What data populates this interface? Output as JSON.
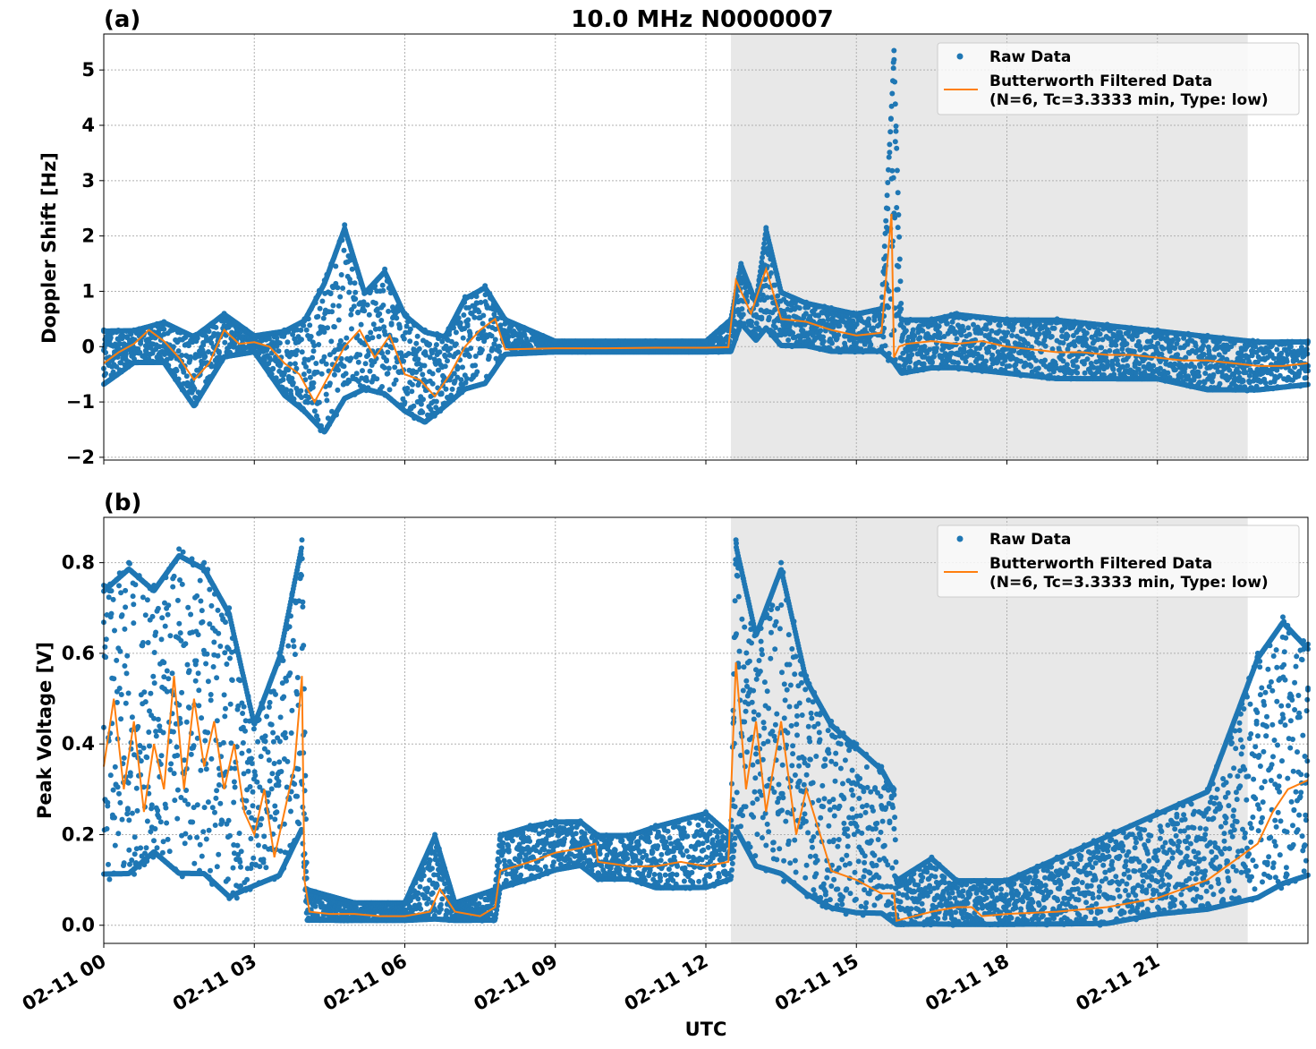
{
  "figure": {
    "suptitle": "10.0 MHz N0000007",
    "xlabel": "UTC",
    "x_tick_labels": [
      "02-11 00",
      "02-11 03",
      "02-11 06",
      "02-11 09",
      "02-11 12",
      "02-11 15",
      "02-11 18",
      "02-11 21"
    ]
  },
  "colors": {
    "raw": "#1f77b4",
    "filtered": "#ff7f0e",
    "shade": "#e8e8e8",
    "grid": "#b0b0b0"
  },
  "chart_data": [
    {
      "type": "scatter",
      "panel_label": "(a)",
      "title": "10.0 MHz N0000007",
      "xlabel": "UTC",
      "ylabel": "Doppler Shift [Hz]",
      "x_unit": "hours since 02-11 00 UTC",
      "xlim": [
        0,
        24
      ],
      "ylim": [
        -2.05,
        5.65
      ],
      "yticks": [
        5,
        4,
        3,
        2,
        1,
        0,
        -1,
        -2
      ],
      "ytick_labels": [
        "5",
        "4",
        "3",
        "2",
        "1",
        "0",
        "−1",
        "−2"
      ],
      "grid": true,
      "legend_position": "top-right",
      "legend": [
        "Raw Data",
        "Butterworth Filtered Data",
        "(N=6, Tc=3.3333 min, Type: low)"
      ],
      "shaded_x_range": [
        12.5,
        22.8
      ],
      "series": [
        {
          "name": "Butterworth Filtered Data",
          "kind": "line",
          "x": [
            0,
            0.3,
            0.6,
            0.9,
            1.2,
            1.5,
            1.8,
            2.1,
            2.4,
            2.7,
            3.0,
            3.3,
            3.6,
            3.9,
            4.2,
            4.5,
            4.8,
            5.1,
            5.4,
            5.7,
            6.0,
            6.3,
            6.6,
            6.9,
            7.2,
            7.5,
            7.8,
            8.0,
            9.0,
            10.0,
            11.0,
            12.0,
            12.45,
            12.6,
            12.9,
            13.2,
            13.5,
            14.0,
            14.5,
            15.0,
            15.5,
            15.7,
            15.75,
            15.85,
            16.0,
            16.5,
            17.0,
            17.5,
            18.0,
            18.5,
            19.0,
            19.5,
            20.0,
            20.5,
            21.0,
            21.5,
            22.0,
            22.5,
            23.0,
            23.5,
            24.0
          ],
          "y": [
            -0.3,
            -0.1,
            0.05,
            0.3,
            0.1,
            -0.2,
            -0.6,
            -0.3,
            0.3,
            0.05,
            0.08,
            0.0,
            -0.3,
            -0.5,
            -1.0,
            -0.5,
            0.0,
            0.3,
            -0.2,
            0.2,
            -0.5,
            -0.6,
            -0.9,
            -0.5,
            0.0,
            0.3,
            0.5,
            -0.05,
            -0.03,
            -0.03,
            -0.02,
            -0.02,
            -0.01,
            1.2,
            0.6,
            1.4,
            0.5,
            0.45,
            0.3,
            0.2,
            0.25,
            2.4,
            -0.2,
            0.0,
            0.05,
            0.1,
            0.05,
            0.1,
            0.0,
            -0.05,
            -0.1,
            -0.1,
            -0.15,
            -0.15,
            -0.2,
            -0.25,
            -0.25,
            -0.3,
            -0.35,
            -0.35,
            -0.3
          ]
        },
        {
          "name": "Raw Data",
          "kind": "scatter_band",
          "x": [
            0,
            0.6,
            1.2,
            1.8,
            2.4,
            3.0,
            3.6,
            4.0,
            4.4,
            4.8,
            5.2,
            5.6,
            6.0,
            6.4,
            6.8,
            7.2,
            7.6,
            8.0,
            9.0,
            10.0,
            11.0,
            12.0,
            12.5,
            12.7,
            13.0,
            13.2,
            13.5,
            14.0,
            14.5,
            15.0,
            15.5,
            15.75,
            15.9,
            16.5,
            17.0,
            18.0,
            19.0,
            20.0,
            21.0,
            22.0,
            23.0,
            24.0
          ],
          "lower": [
            -0.7,
            -0.3,
            -0.3,
            -1.1,
            -0.2,
            -0.1,
            -0.9,
            -1.2,
            -1.6,
            -1.0,
            -0.8,
            -0.9,
            -1.2,
            -1.4,
            -1.1,
            -0.8,
            -0.7,
            -0.15,
            -0.1,
            -0.1,
            -0.1,
            -0.1,
            -0.1,
            0.4,
            0.1,
            0.3,
            0.0,
            0.0,
            -0.1,
            -0.1,
            -0.1,
            -0.4,
            -0.5,
            -0.4,
            -0.4,
            -0.5,
            -0.6,
            -0.6,
            -0.6,
            -0.8,
            -0.8,
            -0.7
          ],
          "upper": [
            0.3,
            0.3,
            0.45,
            0.2,
            0.6,
            0.2,
            0.3,
            0.5,
            1.2,
            2.2,
            1.0,
            1.4,
            0.6,
            0.3,
            0.2,
            0.9,
            1.1,
            0.5,
            0.1,
            0.1,
            0.1,
            0.1,
            0.5,
            1.5,
            0.8,
            2.15,
            1.0,
            0.8,
            0.7,
            0.6,
            0.7,
            5.35,
            0.5,
            0.5,
            0.6,
            0.5,
            0.5,
            0.4,
            0.3,
            0.2,
            0.1,
            0.1
          ]
        }
      ]
    },
    {
      "type": "scatter",
      "panel_label": "(b)",
      "xlabel": "UTC",
      "ylabel": "Peak Voltage [V]",
      "x_unit": "hours since 02-11 00 UTC",
      "xlim": [
        0,
        24
      ],
      "ylim": [
        -0.04,
        0.9
      ],
      "yticks": [
        0.8,
        0.6,
        0.4,
        0.2,
        0.0
      ],
      "ytick_labels": [
        "0.8",
        "0.6",
        "0.4",
        "0.2",
        "0.0"
      ],
      "grid": true,
      "legend_position": "top-right",
      "legend": [
        "Raw Data",
        "Butterworth Filtered Data",
        "(N=6, Tc=3.3333 min, Type: low)"
      ],
      "shaded_x_range": [
        12.5,
        22.8
      ],
      "series": [
        {
          "name": "Butterworth Filtered Data",
          "kind": "line",
          "x": [
            0,
            0.2,
            0.4,
            0.6,
            0.8,
            1.0,
            1.2,
            1.4,
            1.6,
            1.8,
            2.0,
            2.2,
            2.4,
            2.6,
            2.8,
            3.0,
            3.2,
            3.4,
            3.6,
            3.8,
            3.95,
            4.0,
            4.1,
            4.5,
            5.0,
            5.5,
            6.0,
            6.5,
            6.7,
            7.0,
            7.5,
            7.8,
            7.9,
            8.5,
            9.0,
            9.5,
            9.8,
            9.85,
            10.5,
            11.0,
            11.5,
            12.0,
            12.45,
            12.6,
            12.8,
            13.0,
            13.2,
            13.5,
            13.8,
            14.0,
            14.5,
            15.0,
            15.5,
            15.75,
            15.8,
            16.5,
            17.0,
            17.3,
            17.5,
            18.0,
            19.0,
            20.0,
            21.0,
            21.5,
            22.0,
            22.5,
            23.0,
            23.3,
            23.6,
            24.0
          ],
          "y": [
            0.35,
            0.5,
            0.3,
            0.45,
            0.25,
            0.4,
            0.3,
            0.55,
            0.3,
            0.5,
            0.35,
            0.45,
            0.3,
            0.4,
            0.25,
            0.2,
            0.3,
            0.15,
            0.25,
            0.35,
            0.55,
            0.1,
            0.03,
            0.025,
            0.025,
            0.02,
            0.02,
            0.03,
            0.08,
            0.03,
            0.02,
            0.04,
            0.12,
            0.14,
            0.16,
            0.17,
            0.18,
            0.14,
            0.13,
            0.13,
            0.14,
            0.13,
            0.14,
            0.58,
            0.3,
            0.45,
            0.25,
            0.45,
            0.2,
            0.3,
            0.12,
            0.1,
            0.07,
            0.07,
            0.01,
            0.03,
            0.04,
            0.04,
            0.02,
            0.025,
            0.03,
            0.04,
            0.06,
            0.08,
            0.1,
            0.14,
            0.18,
            0.25,
            0.3,
            0.32
          ]
        },
        {
          "name": "Raw Data",
          "kind": "scatter_band",
          "x": [
            0,
            0.5,
            1.0,
            1.5,
            2.0,
            2.5,
            3.0,
            3.5,
            3.95,
            4.05,
            5.0,
            6.0,
            6.6,
            7.0,
            7.8,
            7.9,
            8.5,
            9.0,
            9.5,
            9.85,
            10.5,
            11.0,
            12.0,
            12.5,
            12.6,
            13.0,
            13.5,
            14.0,
            14.5,
            15.0,
            15.5,
            15.75,
            15.8,
            16.5,
            17.0,
            18.0,
            19.0,
            20.0,
            21.0,
            22.0,
            23.0,
            23.5,
            24.0
          ],
          "lower": [
            0.1,
            0.1,
            0.15,
            0.1,
            0.1,
            0.05,
            0.08,
            0.1,
            0.2,
            0.01,
            0.01,
            0.01,
            0.01,
            0.01,
            0.01,
            0.08,
            0.1,
            0.12,
            0.13,
            0.1,
            0.1,
            0.08,
            0.08,
            0.1,
            0.2,
            0.12,
            0.1,
            0.06,
            0.03,
            0.02,
            0.02,
            0.0,
            0.0,
            0.0,
            0.0,
            0.0,
            0.0,
            0.0,
            0.02,
            0.03,
            0.05,
            0.08,
            0.1
          ],
          "upper": [
            0.75,
            0.8,
            0.75,
            0.83,
            0.8,
            0.7,
            0.45,
            0.6,
            0.85,
            0.08,
            0.05,
            0.05,
            0.2,
            0.05,
            0.08,
            0.2,
            0.22,
            0.23,
            0.23,
            0.2,
            0.2,
            0.22,
            0.25,
            0.2,
            0.85,
            0.65,
            0.8,
            0.55,
            0.45,
            0.4,
            0.35,
            0.3,
            0.1,
            0.15,
            0.1,
            0.1,
            0.15,
            0.2,
            0.25,
            0.3,
            0.6,
            0.68,
            0.62
          ]
        }
      ]
    }
  ]
}
